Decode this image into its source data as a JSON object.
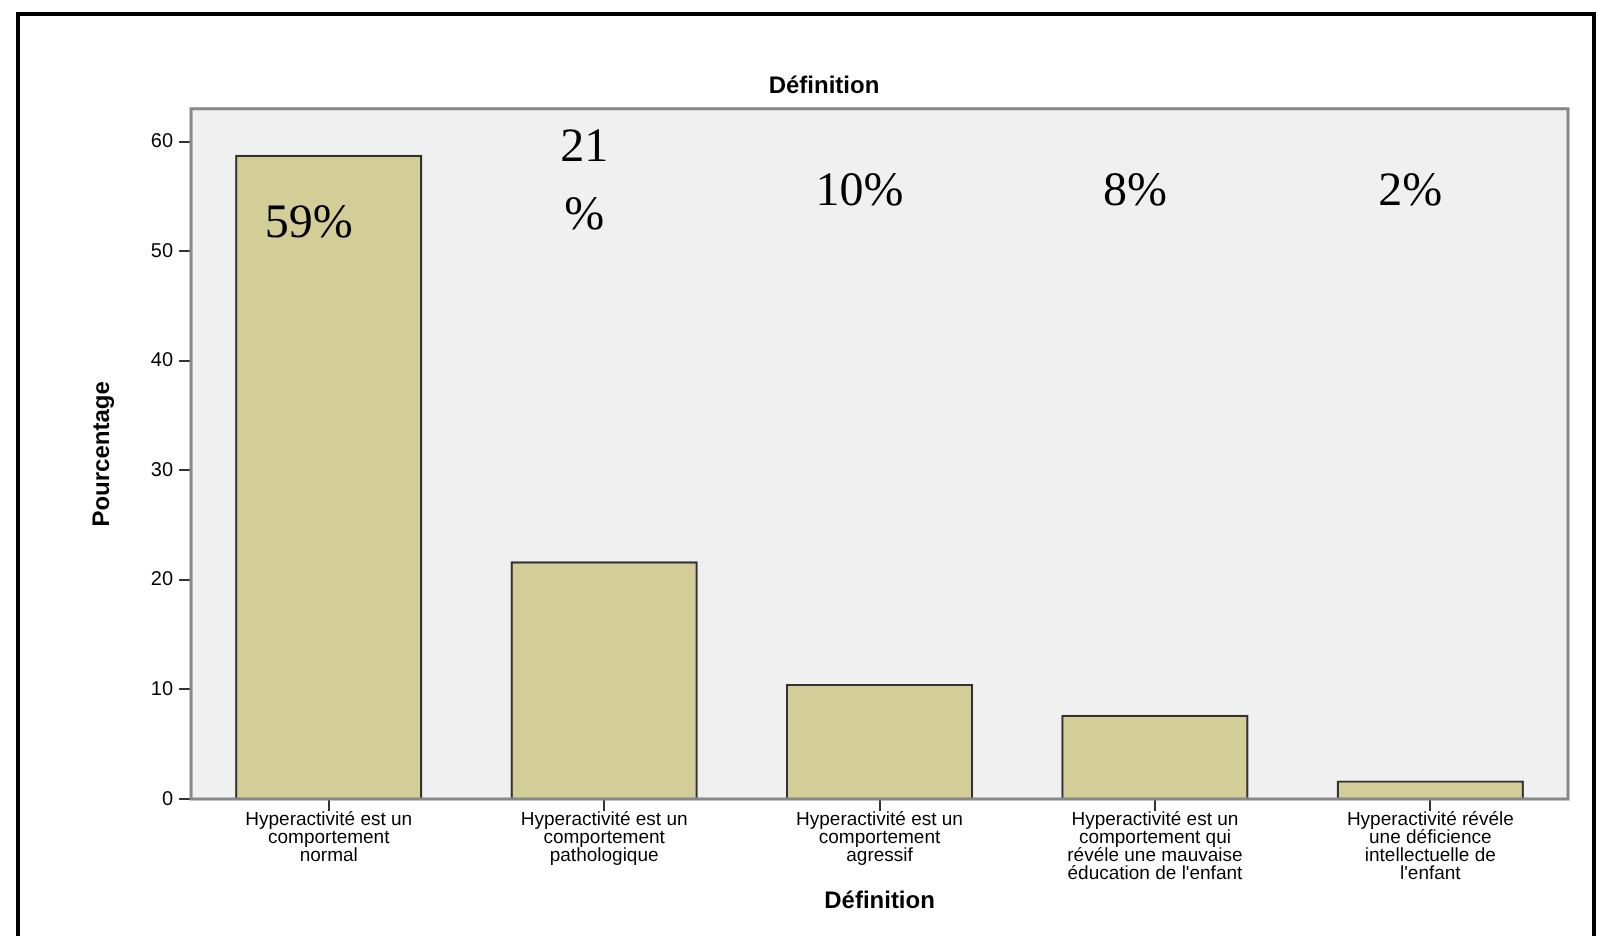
{
  "chart_data": {
    "type": "bar",
    "title": "Définition",
    "xlabel": "Définition",
    "ylabel": "Pourcentage",
    "categories": [
      "Hyperactivité est un\ncomportement\nnormal",
      "Hyperactivité est un\ncomportement\npathologique",
      "Hyperactivité est un\ncomportement\nagressif",
      "Hyperactivité est un\ncomportement qui\nrévéle une mauvaise\néducation de l'enfant",
      "Hyperactivité révéle\nune déficience\nintellectuelle de\nl'enfant"
    ],
    "values": [
      58.8,
      21.7,
      10.5,
      7.7,
      1.7
    ],
    "annotations": [
      "59%",
      "21\n%",
      "10%",
      "8%",
      "2%"
    ],
    "color": "#d3ce97",
    "ylim": [
      0,
      63
    ],
    "yticks": [
      0,
      10,
      20,
      30,
      40,
      50,
      60
    ],
    "grid": false,
    "legend": false
  }
}
